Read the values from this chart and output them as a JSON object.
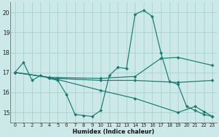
{
  "xlabel": "Humidex (Indice chaleur)",
  "bg_color": "#cce8e8",
  "grid_color": "#aad4d4",
  "line_color": "#1a7a6e",
  "xlim": [
    -0.5,
    23.5
  ],
  "ylim": [
    14.5,
    20.5
  ],
  "yticks": [
    15,
    16,
    17,
    18,
    19,
    20
  ],
  "xticks": [
    0,
    1,
    2,
    3,
    4,
    5,
    6,
    7,
    8,
    9,
    10,
    11,
    12,
    13,
    14,
    15,
    16,
    17,
    18,
    19,
    20,
    21,
    22,
    23
  ],
  "series": [
    {
      "x": [
        0,
        1,
        2,
        3,
        4,
        5,
        6,
        7,
        8,
        9,
        10,
        11,
        12,
        13,
        14,
        15,
        16,
        17,
        18,
        19,
        20,
        21,
        22,
        23
      ],
      "y": [
        17.0,
        17.5,
        16.6,
        16.85,
        16.7,
        16.6,
        15.9,
        14.9,
        14.85,
        14.8,
        15.1,
        16.85,
        17.25,
        17.2,
        19.9,
        20.1,
        19.8,
        18.0,
        16.55,
        16.4,
        15.3,
        15.1,
        14.9,
        14.8
      ]
    },
    {
      "x": [
        0,
        4,
        5,
        10,
        14,
        19,
        23
      ],
      "y": [
        17.0,
        16.75,
        16.7,
        16.6,
        16.6,
        16.5,
        16.6
      ]
    },
    {
      "x": [
        0,
        4,
        10,
        14,
        17,
        19,
        23
      ],
      "y": [
        17.0,
        16.75,
        16.7,
        16.8,
        17.7,
        17.75,
        17.35
      ]
    },
    {
      "x": [
        0,
        4,
        10,
        14,
        19,
        21,
        22,
        23
      ],
      "y": [
        17.0,
        16.75,
        16.1,
        15.7,
        15.0,
        15.3,
        15.05,
        14.8
      ]
    }
  ]
}
